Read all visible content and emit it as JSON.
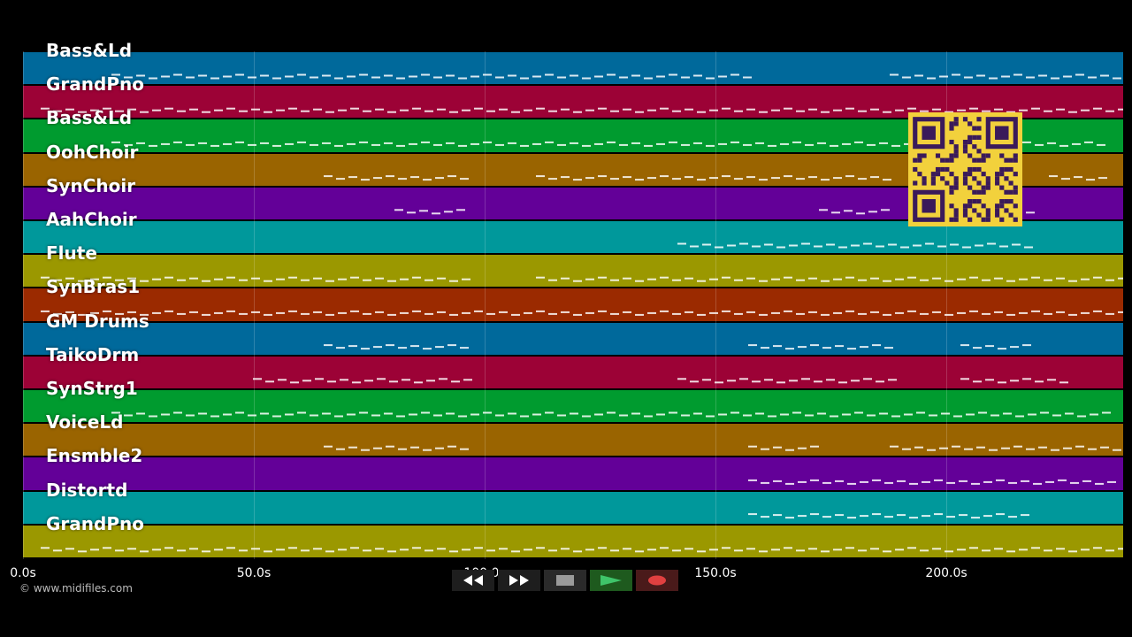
{
  "tracks": [
    {
      "label": "Bass&Ld",
      "color": "#00699b"
    },
    {
      "label": "GrandPno",
      "color": "#9c0236"
    },
    {
      "label": "Bass&Ld",
      "color": "#009b2f"
    },
    {
      "label": "OohChoir",
      "color": "#9a6400"
    },
    {
      "label": "SynChoir",
      "color": "#630098"
    },
    {
      "label": "AahChoir",
      "color": "#00989b"
    },
    {
      "label": "Flute",
      "color": "#9b9800"
    },
    {
      "label": "SynBras1",
      "color": "#9b2a00"
    },
    {
      "label": "GM Drums",
      "color": "#00699b"
    },
    {
      "label": "TaikoDrm",
      "color": "#9c0236"
    },
    {
      "label": "SynStrg1",
      "color": "#009b2f"
    },
    {
      "label": "VoiceLd",
      "color": "#9a6400"
    },
    {
      "label": "Ensmble2",
      "color": "#630098"
    },
    {
      "label": "Distortd",
      "color": "#00989b"
    },
    {
      "label": "GrandPno",
      "color": "#9b9800"
    }
  ],
  "timeline": {
    "ticks": [
      "0.0s",
      "50.0s",
      "100.0s",
      "150.0s",
      "200.0s"
    ]
  },
  "credit": "© www.midifiles.com",
  "controls": {
    "rewind": "rewind-icon",
    "forward": "fast-forward-icon",
    "stop": "stop-icon",
    "play": "play-icon",
    "record": "record-icon"
  },
  "qr": "qr-code"
}
